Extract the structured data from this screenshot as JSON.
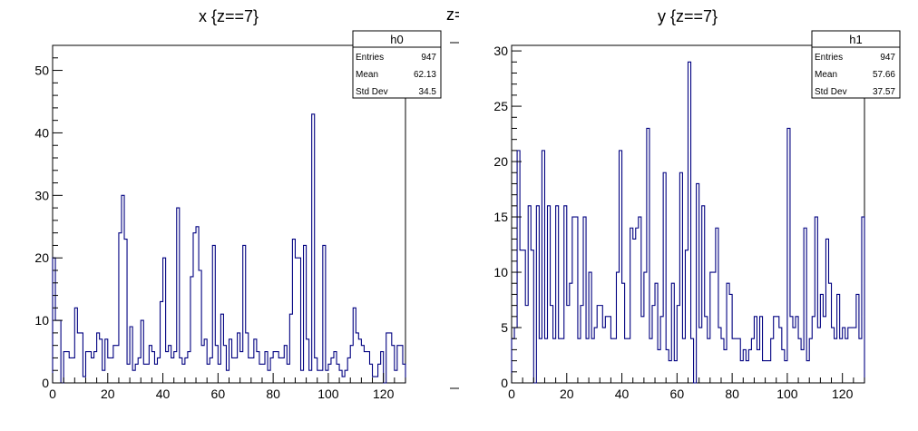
{
  "chart_data": [
    {
      "type": "bar",
      "title": "x {z==7}",
      "xlabel": "",
      "ylabel": "",
      "xlim": [
        0,
        128
      ],
      "ylim": [
        0,
        54
      ],
      "xticks": [
        0,
        20,
        40,
        60,
        80,
        100,
        120
      ],
      "yticks": [
        0,
        10,
        20,
        30,
        40,
        50
      ],
      "grid": false,
      "line_color": "#000080",
      "stats_box": {
        "name": "h0",
        "rows": [
          {
            "label": "Entries",
            "value": "947"
          },
          {
            "label": "Mean",
            "value": "62.13"
          },
          {
            "label": "Std Dev",
            "value": "34.5"
          }
        ]
      },
      "values": [
        20,
        10,
        10,
        0,
        5,
        5,
        4,
        4,
        12,
        8,
        8,
        1,
        5,
        5,
        4,
        5,
        8,
        7,
        2,
        7,
        4,
        4,
        6,
        6,
        24,
        30,
        23,
        3,
        9,
        2,
        3,
        4,
        10,
        3,
        3,
        6,
        5,
        3,
        4,
        13,
        20,
        5,
        6,
        4,
        5,
        28,
        4,
        3,
        4,
        5,
        17,
        24,
        25,
        18,
        6,
        7,
        3,
        4,
        22,
        6,
        3,
        11,
        6,
        2,
        7,
        4,
        4,
        8,
        5,
        22,
        8,
        4,
        4,
        7,
        5,
        3,
        3,
        5,
        2,
        4,
        5,
        5,
        4,
        4,
        6,
        3,
        11,
        23,
        20,
        20,
        2,
        22,
        7,
        2,
        43,
        4,
        2,
        2,
        22,
        2,
        3,
        4,
        5,
        3,
        2,
        1,
        2,
        4,
        6,
        12,
        8,
        7,
        6,
        5,
        5,
        3,
        1,
        1,
        3,
        5,
        0,
        8,
        8,
        6,
        2,
        6,
        6,
        3
      ],
      "annotations": [
        "z="
      ]
    },
    {
      "type": "bar",
      "title": "y {z==7}",
      "xlabel": "",
      "ylabel": "",
      "xlim": [
        0,
        128
      ],
      "ylim": [
        0,
        30.5
      ],
      "xticks": [
        0,
        20,
        40,
        60,
        80,
        100,
        120
      ],
      "yticks": [
        0,
        5,
        10,
        15,
        20,
        25,
        30
      ],
      "grid": false,
      "line_color": "#000080",
      "stats_box": {
        "name": "h1",
        "rows": [
          {
            "label": "Entries",
            "value": "947"
          },
          {
            "label": "Mean",
            "value": "57.66"
          },
          {
            "label": "Std Dev",
            "value": "37.57"
          }
        ]
      },
      "values": [
        4,
        5,
        21,
        12,
        12,
        7,
        16,
        12,
        0,
        16,
        4,
        21,
        4,
        16,
        7,
        4,
        16,
        4,
        4,
        16,
        7,
        9,
        15,
        15,
        4,
        7,
        15,
        4,
        10,
        4,
        5,
        7,
        7,
        5,
        6,
        6,
        4,
        4,
        10,
        21,
        9,
        4,
        4,
        14,
        13,
        14,
        15,
        6,
        10,
        23,
        4,
        7,
        9,
        3,
        6,
        19,
        3,
        2,
        9,
        2,
        7,
        19,
        4,
        12,
        29,
        4,
        0,
        18,
        5,
        16,
        6,
        4,
        10,
        10,
        14,
        5,
        4,
        3,
        9,
        8,
        4,
        4,
        4,
        2,
        3,
        2,
        3,
        4,
        6,
        3,
        6,
        2,
        2,
        2,
        4,
        6,
        6,
        5,
        3,
        2,
        23,
        6,
        5,
        6,
        4,
        3,
        14,
        2,
        4,
        6,
        15,
        5,
        8,
        6,
        13,
        9,
        5,
        4,
        8,
        4,
        5,
        4,
        5,
        5,
        5,
        8,
        4,
        15
      ],
      "annotations": []
    }
  ]
}
